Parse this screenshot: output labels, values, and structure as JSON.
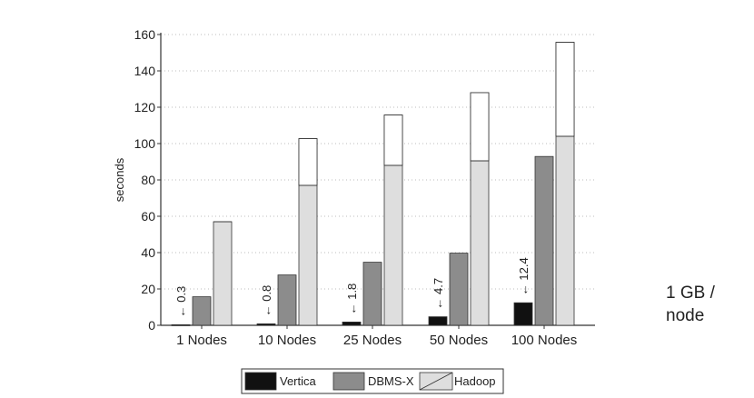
{
  "chart_data": {
    "type": "bar",
    "ylabel": "seconds",
    "xlabel": "",
    "title": "",
    "ylim": [
      0,
      160
    ],
    "yticks": [
      0,
      20,
      40,
      60,
      80,
      100,
      120,
      140,
      160
    ],
    "categories": [
      "1 Nodes",
      "10 Nodes",
      "25 Nodes",
      "50 Nodes",
      "100 Nodes"
    ],
    "series": [
      {
        "name": "Vertica",
        "values": [
          0.3,
          0.8,
          1.8,
          4.7,
          12.4
        ],
        "color": "#111111"
      },
      {
        "name": "DBMS-X",
        "values": [
          15.7,
          27.7,
          34.7,
          39.7,
          92.9
        ],
        "color": "#8c8c8c"
      },
      {
        "name": "Hadoop",
        "values": [
          57,
          102.7,
          115.7,
          128,
          155.7
        ],
        "lower_values": [
          57,
          77,
          88,
          90.5,
          104
        ],
        "color": "#dedede"
      }
    ],
    "data_labels": [
      "0.3",
      "0.8",
      "1.8",
      "4.7",
      "12.4"
    ],
    "grid": true,
    "legend_position": "bottom"
  },
  "side_note": "1 GB /\nnode"
}
